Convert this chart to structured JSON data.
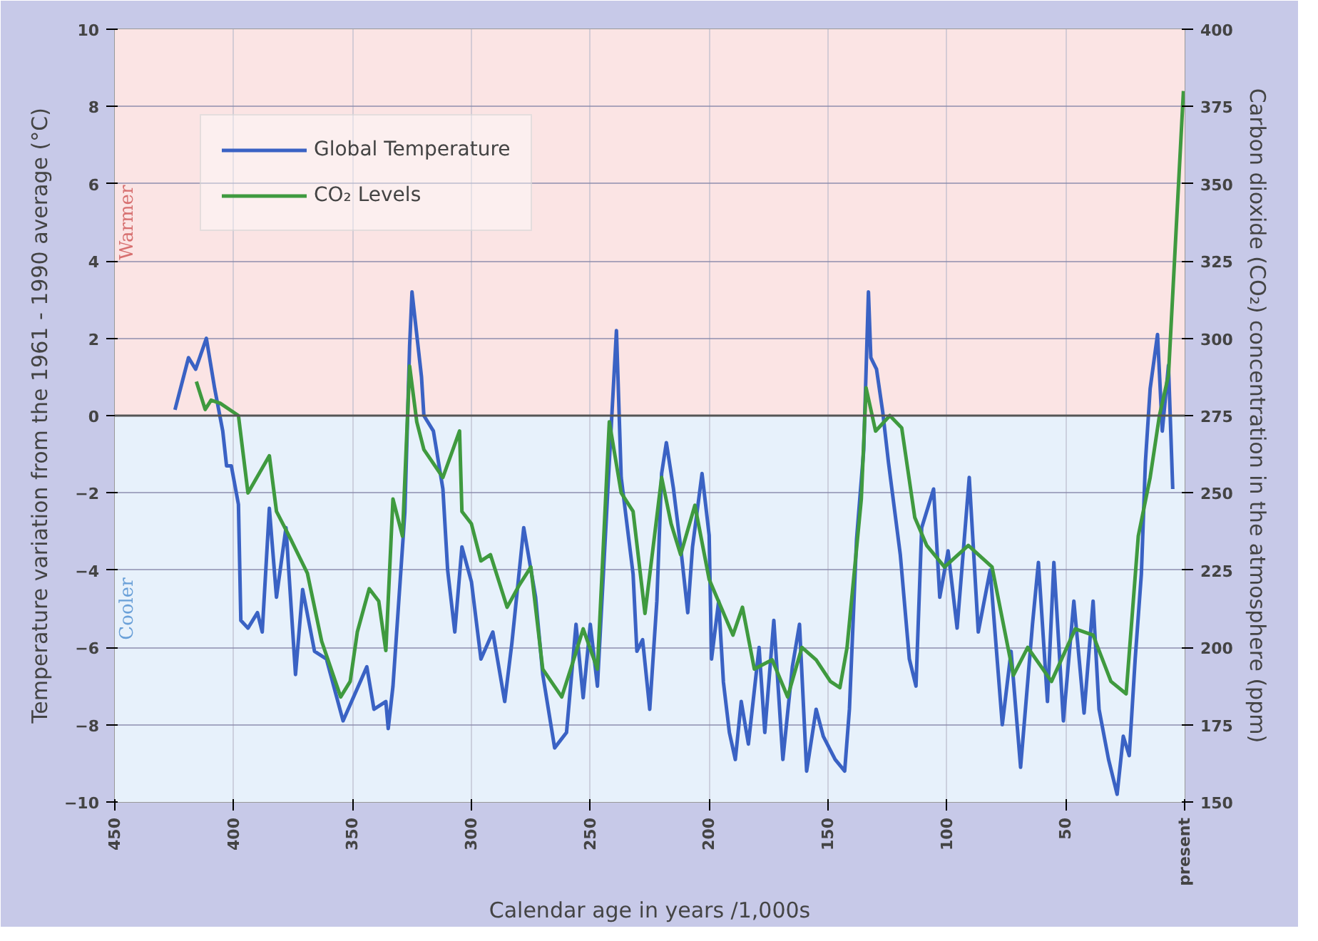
{
  "chart_data": {
    "type": "line",
    "xlabel": "Calendar age in years /1,000s",
    "ylabel": "Temperature variation from the 1961 - 1990 average (°C)",
    "y2label": "Carbon dioxide (CO₂) concentration in the atmosphere (ppm)",
    "xlim": [
      450,
      0
    ],
    "xticks": [
      450,
      400,
      350,
      300,
      250,
      200,
      150,
      100,
      50,
      {
        "value": 0,
        "label": "present"
      }
    ],
    "ylim": [
      -10,
      10
    ],
    "yticks": [
      -10,
      -8,
      -6,
      -4,
      -2,
      0,
      2,
      4,
      6,
      8,
      10
    ],
    "y2lim": [
      150,
      400
    ],
    "y2ticks": [
      150,
      175,
      200,
      225,
      250,
      275,
      300,
      325,
      350,
      375,
      400
    ],
    "grid": true,
    "legend": "top left",
    "bands": [
      {
        "axis": "y",
        "from": 0,
        "to": 10,
        "label": "Warmer",
        "color": "#fbe4e4"
      },
      {
        "axis": "y",
        "from": -10,
        "to": 0,
        "label": "Cooler",
        "color": "#e7f1fb"
      }
    ],
    "ref_lines": [
      {
        "axis": "y",
        "value": 0,
        "color": "#555555"
      }
    ],
    "series": [
      {
        "name": "Global Temperature",
        "color": "#3a62c4",
        "x": [
          424.7,
          419,
          416,
          411.5,
          408,
          404.6,
          403,
          401,
          398,
          397,
          394,
          390,
          388,
          385,
          382,
          378,
          374,
          371,
          366,
          361,
          354,
          344,
          341,
          336,
          335,
          333,
          328,
          326,
          325,
          321,
          320,
          316,
          312,
          310,
          307,
          304,
          300,
          296,
          291,
          286,
          283,
          278,
          273,
          270,
          265,
          260,
          256,
          253,
          250,
          247,
          242,
          239,
          237,
          232,
          230.4,
          228,
          225,
          222,
          220,
          218,
          215,
          212,
          209,
          207,
          203,
          200,
          199,
          196,
          194,
          191.5,
          189,
          186.5,
          183.5,
          179,
          176.6,
          172.8,
          169,
          165,
          162,
          159,
          155,
          152,
          147,
          143,
          141,
          138,
          135,
          133,
          132,
          129.6,
          127,
          124.6,
          119.6,
          115.8,
          113,
          110.6,
          105.6,
          103,
          99.5,
          95.7,
          90.6,
          86.8,
          81.8,
          76.7,
          73,
          69,
          64,
          61.5,
          57.7,
          55,
          51,
          46.6,
          42.3,
          38.5,
          36,
          32,
          28.4,
          25.8,
          23.3,
          20.8,
          18.2,
          16.5,
          14.5,
          11.4,
          9.4,
          6.8,
          5
        ],
        "values": [
          0.15,
          1.5,
          1.2,
          2.0,
          0.7,
          -0.4,
          -1.3,
          -1.3,
          -2.3,
          -5.3,
          -5.5,
          -5.1,
          -5.6,
          -2.4,
          -4.7,
          -2.9,
          -6.7,
          -4.5,
          -6.1,
          -6.3,
          -7.9,
          -6.5,
          -7.6,
          -7.4,
          -8.1,
          -7.0,
          -2.5,
          1.8,
          3.2,
          1.0,
          0,
          -0.4,
          -1.9,
          -4.0,
          -5.6,
          -3.4,
          -4.3,
          -6.3,
          -5.6,
          -7.4,
          -5.9,
          -2.9,
          -4.7,
          -6.7,
          -8.6,
          -8.2,
          -5.4,
          -7.3,
          -5.4,
          -7.0,
          -1.2,
          2.2,
          -1.6,
          -4.1,
          -6.1,
          -5.8,
          -7.6,
          -4.8,
          -1.5,
          -0.7,
          -1.9,
          -3.4,
          -5.1,
          -3.4,
          -1.5,
          -3.1,
          -6.3,
          -4.8,
          -6.9,
          -8.2,
          -8.9,
          -7.4,
          -8.5,
          -6.0,
          -8.2,
          -5.3,
          -8.9,
          -6.5,
          -5.4,
          -9.2,
          -7.6,
          -8.3,
          -8.9,
          -9.2,
          -7.6,
          -3.2,
          -0.9,
          3.2,
          1.5,
          1.2,
          0.1,
          -1.2,
          -3.6,
          -6.3,
          -7.0,
          -2.9,
          -1.9,
          -4.7,
          -3.5,
          -5.5,
          -1.6,
          -5.6,
          -4.0,
          -8.0,
          -6.1,
          -9.1,
          -5.4,
          -3.8,
          -7.4,
          -3.8,
          -7.9,
          -4.8,
          -7.7,
          -4.8,
          -7.6,
          -8.9,
          -9.8,
          -8.3,
          -8.8,
          -6.3,
          -4.1,
          -1.2,
          0.7,
          2.1,
          -0.4,
          1.3,
          -1.9
        ]
      },
      {
        "name": "CO₂ Levels",
        "color": "#3f9a3f",
        "axis": "y2",
        "x": [
          415.7,
          412,
          409.5,
          405.7,
          398,
          394,
          385,
          382,
          376,
          369,
          363,
          355,
          351,
          348,
          343,
          339,
          336,
          333,
          329,
          326,
          323,
          320,
          312,
          305,
          304,
          300,
          296,
          292,
          285,
          280,
          275,
          270,
          262,
          257,
          253,
          247,
          242,
          237,
          232,
          227,
          223,
          220,
          216,
          212,
          206,
          200,
          190,
          186,
          181,
          173.5,
          167,
          161,
          155,
          149,
          145,
          142,
          136,
          134,
          130,
          124,
          119,
          113.5,
          108.5,
          101,
          91,
          81,
          72,
          66,
          56,
          46,
          38.5,
          31,
          24.6,
          19.5,
          14.5,
          10.6,
          6.8,
          0.5
        ],
        "values": [
          286,
          277,
          280,
          279,
          275,
          250,
          262,
          244,
          235,
          224,
          202,
          184,
          189,
          205,
          219,
          215,
          199,
          248,
          236,
          291,
          273,
          264,
          255,
          270,
          244,
          240,
          228,
          230,
          213,
          220,
          226,
          193,
          184,
          196,
          206,
          193,
          273,
          250,
          244,
          211,
          236,
          255,
          240,
          230,
          246,
          222,
          204,
          213,
          193,
          196,
          184,
          200,
          196,
          189,
          187,
          200,
          248,
          284,
          270,
          275,
          271,
          242,
          233,
          226,
          233,
          226,
          191,
          200,
          189,
          206,
          204,
          189,
          185,
          236,
          255,
          275,
          288,
          380
        ]
      }
    ]
  }
}
